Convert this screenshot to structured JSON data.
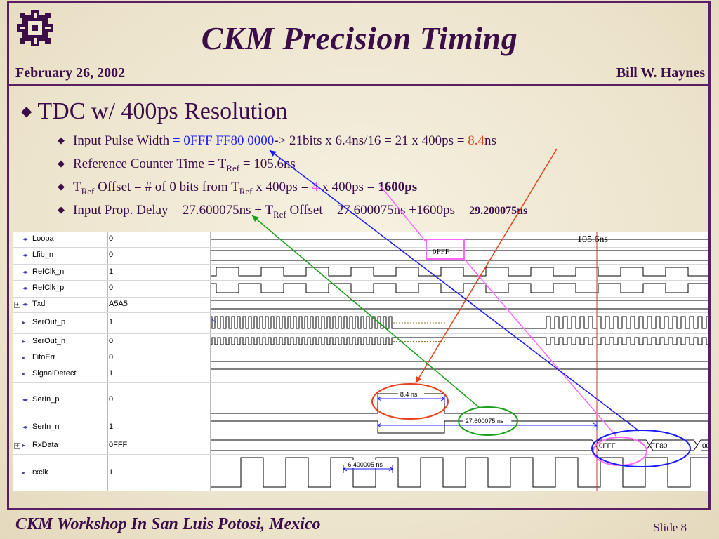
{
  "header": {
    "title": "CKM Precision Timing",
    "date": "February 26, 2002",
    "author": "Bill W. Haynes"
  },
  "main_bullet": "TDC w/ 400ps Resolution",
  "bullets": {
    "b1": {
      "pre": "Input Pulse Width ",
      "eq": "=",
      "hex": " 0FFF FF80 0000",
      "mid": "-> 21bits x 6.4ns/16 = 21 x 400ps = ",
      "val": "8.4",
      "unit": "ns"
    },
    "b2": {
      "pre": "Reference Counter Time = T",
      "sub": "Ref",
      "post": " = 105.6ns"
    },
    "b3": {
      "t": "T",
      "sub": "Ref",
      "mid": " Offset  = # of 0 bits from T",
      "sub2": "Ref",
      "mid2": "  x 400ps = ",
      "val": "4",
      "mid3": " x 400ps = ",
      "bold": "1600ps"
    },
    "b4": {
      "pre": "Input Prop. Delay = 27.600075ns + T",
      "sub": "Ref",
      "mid": " Offset = 27.600075ns +1600ps = ",
      "bold": "29.200075ns"
    }
  },
  "waveform": {
    "signals": [
      {
        "name": "Loopa",
        "value": "0",
        "icon": "input-arrow-icon"
      },
      {
        "name": "Lfib_n",
        "value": "0",
        "icon": "input-arrow-icon"
      },
      {
        "name": "RefClk_n",
        "value": "1",
        "icon": "input-arrow-icon"
      },
      {
        "name": "RefClk_p",
        "value": "0",
        "icon": "input-arrow-icon"
      },
      {
        "name": "Txd",
        "value": "A5A5",
        "icon": "input-arrow-icon",
        "expand": "+"
      },
      {
        "name": "SerOut_p",
        "value": "1",
        "icon": "output-arrow-icon"
      },
      {
        "name": "SerOut_n",
        "value": "0",
        "icon": "output-arrow-icon"
      },
      {
        "name": "FifoErr",
        "value": "0",
        "icon": "output-arrow-icon"
      },
      {
        "name": "SignalDetect",
        "value": "1",
        "icon": "output-arrow-icon"
      },
      {
        "name": "SerIn_p",
        "value": "0",
        "icon": "input-arrow-icon"
      },
      {
        "name": "SerIn_n",
        "value": "1",
        "icon": "input-arrow-icon"
      },
      {
        "name": "RxData",
        "value": "0FFF",
        "icon": "output-arrow-icon",
        "expand": "+"
      },
      {
        "name": "rxclk",
        "value": "1",
        "icon": "output-arrow-icon"
      }
    ],
    "cursor_label": "105.6ns",
    "lfib_box_label": "0FFF",
    "rxdata_labels": [
      "0FFF",
      "FF80",
      "00"
    ],
    "measure_serin": "8.4 ns",
    "measure_delay": "27.600075 ns",
    "measure_rxclk": "6.400005 ns",
    "colors": {
      "cursor": "#cc3333",
      "blue": "#1a1aff",
      "red": "#e8401a",
      "green": "#18a018",
      "pink": "#ff66ff"
    }
  },
  "footer": {
    "workshop": "CKM Workshop In San Luis Potosi, Mexico",
    "slide": "Slide 8"
  }
}
